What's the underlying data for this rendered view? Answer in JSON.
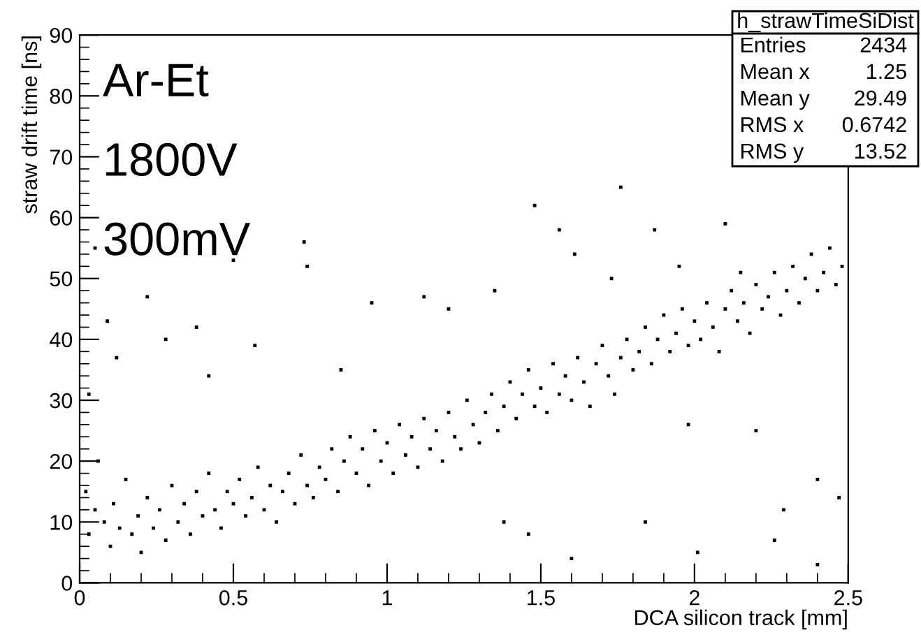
{
  "chart_data": {
    "type": "scatter",
    "title": "h_strawTimeSiDist",
    "xlabel": "DCA silicon track [mm]",
    "ylabel": "straw drift time [ns]",
    "annotations": [
      "Ar-Et",
      "1800V",
      "300mV",
      "Entries",
      "2434",
      "Mean x",
      "1.25",
      "Mean y",
      "29.49",
      "RMS x",
      "0.6742",
      "RMS y",
      "13.52"
    ],
    "xlim": [
      0,
      2.5
    ],
    "ylim": [
      0,
      90
    ],
    "xticks": [
      0,
      0.5,
      1,
      1.5,
      2,
      2.5
    ],
    "yticks": [
      0,
      10,
      20,
      30,
      40,
      50,
      60,
      70,
      80,
      90
    ],
    "grid": false,
    "legend": false,
    "marker": "square",
    "series": [
      {
        "color": "#000000",
        "x": [
          0.02,
          0.03,
          0.05,
          0.06,
          0.08,
          0.1,
          0.11,
          0.13,
          0.15,
          0.17,
          0.19,
          0.2,
          0.22,
          0.24,
          0.26,
          0.28,
          0.3,
          0.32,
          0.34,
          0.36,
          0.38,
          0.4,
          0.42,
          0.44,
          0.46,
          0.48,
          0.5,
          0.52,
          0.54,
          0.56,
          0.58,
          0.6,
          0.62,
          0.64,
          0.66,
          0.68,
          0.7,
          0.72,
          0.74,
          0.76,
          0.78,
          0.8,
          0.82,
          0.84,
          0.86,
          0.88,
          0.9,
          0.92,
          0.94,
          0.96,
          0.98,
          1.0,
          1.02,
          1.04,
          1.06,
          1.08,
          1.1,
          1.12,
          1.14,
          1.16,
          1.18,
          1.2,
          1.22,
          1.24,
          1.26,
          1.28,
          1.3,
          1.32,
          1.34,
          1.36,
          1.38,
          1.4,
          1.42,
          1.44,
          1.46,
          1.48,
          1.5,
          1.52,
          1.54,
          1.56,
          1.58,
          1.6,
          1.62,
          1.64,
          1.66,
          1.68,
          1.7,
          1.72,
          1.74,
          1.76,
          1.78,
          1.8,
          1.82,
          1.84,
          1.86,
          1.88,
          1.9,
          1.92,
          1.94,
          1.96,
          1.98,
          2.0,
          2.02,
          2.04,
          2.06,
          2.08,
          2.1,
          2.12,
          2.14,
          2.16,
          2.18,
          2.2,
          2.22,
          2.24,
          2.26,
          2.28,
          2.3,
          2.32,
          2.34,
          2.36,
          2.38,
          2.4,
          2.42,
          2.44,
          2.46,
          2.48,
          0.03,
          0.09,
          0.05,
          0.12,
          0.22,
          0.28,
          0.38,
          0.42,
          0.5,
          0.57,
          0.73,
          0.74,
          0.85,
          0.95,
          1.12,
          1.2,
          1.35,
          1.48,
          1.56,
          1.61,
          1.76,
          1.73,
          1.87,
          1.95,
          2.1,
          2.15,
          2.2,
          2.01,
          1.84,
          2.26,
          2.4,
          2.47,
          2.4,
          1.46,
          1.6,
          1.38,
          2.29,
          1.98
        ],
        "values": [
          15,
          8,
          12,
          20,
          10,
          6,
          13,
          9,
          17,
          8,
          11,
          5,
          14,
          9,
          12,
          7,
          16,
          10,
          13,
          8,
          15,
          11,
          18,
          12,
          9,
          15,
          13,
          17,
          11,
          14,
          19,
          12,
          16,
          10,
          15,
          18,
          13,
          21,
          16,
          14,
          19,
          17,
          22,
          15,
          20,
          24,
          18,
          22,
          16,
          25,
          20,
          23,
          18,
          26,
          21,
          24,
          19,
          27,
          22,
          25,
          20,
          28,
          24,
          22,
          30,
          26,
          23,
          28,
          31,
          25,
          29,
          33,
          27,
          31,
          35,
          29,
          32,
          28,
          36,
          31,
          34,
          30,
          37,
          33,
          29,
          36,
          39,
          34,
          31,
          37,
          40,
          35,
          38,
          42,
          36,
          40,
          44,
          38,
          41,
          45,
          39,
          43,
          40,
          46,
          42,
          38,
          45,
          48,
          43,
          46,
          41,
          49,
          45,
          47,
          51,
          44,
          48,
          52,
          46,
          50,
          54,
          48,
          51,
          55,
          49,
          52,
          31,
          43,
          55,
          37,
          47,
          40,
          42,
          34,
          53,
          39,
          56,
          52,
          35,
          46,
          47,
          45,
          48,
          62,
          58,
          54,
          65,
          50,
          58,
          52,
          59,
          51,
          25,
          5,
          10,
          7,
          3,
          14,
          17,
          8,
          4,
          10,
          12,
          26
        ]
      }
    ]
  }
}
